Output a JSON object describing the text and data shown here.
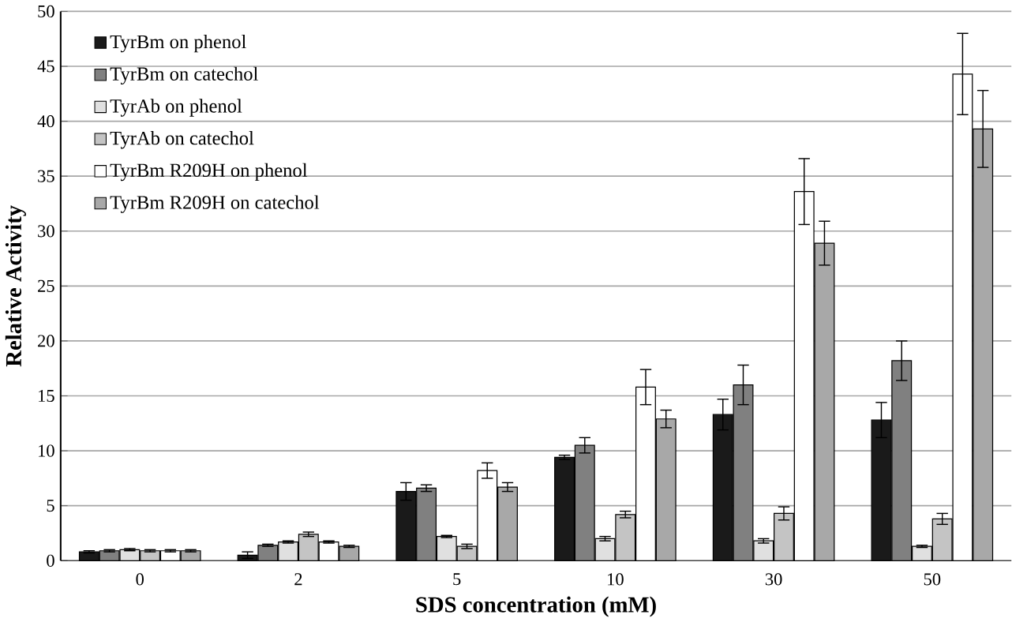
{
  "chart_data": {
    "type": "bar",
    "xlabel": "SDS concentration (mM)",
    "ylabel": "Relative Activity",
    "categories": [
      "0",
      "2",
      "5",
      "10",
      "30",
      "50"
    ],
    "ylim": [
      0,
      50
    ],
    "yticks": [
      0,
      5,
      10,
      15,
      20,
      25,
      30,
      35,
      40,
      45,
      50
    ],
    "grid": "y",
    "legend": "top left",
    "series": [
      {
        "name": "TyrBm on phenol",
        "color": "#1a1a1a",
        "values": [
          0.8,
          0.5,
          6.3,
          9.4,
          13.3,
          12.8
        ],
        "errors": [
          0.1,
          0.3,
          0.8,
          0.2,
          1.4,
          1.6
        ]
      },
      {
        "name": "TyrBm on catechol",
        "color": "#808080",
        "values": [
          0.9,
          1.4,
          6.6,
          10.5,
          16.0,
          18.2
        ],
        "errors": [
          0.1,
          0.1,
          0.3,
          0.7,
          1.8,
          1.8
        ]
      },
      {
        "name": "TyrAb on phenol",
        "color": "#e0e0e0",
        "values": [
          1.0,
          1.7,
          2.2,
          2.0,
          1.8,
          1.3
        ],
        "errors": [
          0.1,
          0.1,
          0.1,
          0.2,
          0.2,
          0.1
        ]
      },
      {
        "name": "TyrAb on catechol",
        "color": "#c4c4c4",
        "values": [
          0.9,
          2.4,
          1.3,
          4.2,
          4.3,
          3.8
        ],
        "errors": [
          0.1,
          0.2,
          0.2,
          0.3,
          0.6,
          0.5
        ]
      },
      {
        "name": "TyrBm R209H on phenol",
        "color": "#ffffff",
        "values": [
          0.9,
          1.7,
          8.2,
          15.8,
          33.6,
          44.3
        ],
        "errors": [
          0.1,
          0.1,
          0.7,
          1.6,
          3.0,
          3.7
        ]
      },
      {
        "name": "TyrBm R209H on catechol",
        "color": "#a8a8a8",
        "values": [
          0.9,
          1.3,
          6.7,
          12.9,
          28.9,
          39.3
        ],
        "errors": [
          0.1,
          0.1,
          0.4,
          0.8,
          2.0,
          3.5
        ]
      }
    ]
  }
}
